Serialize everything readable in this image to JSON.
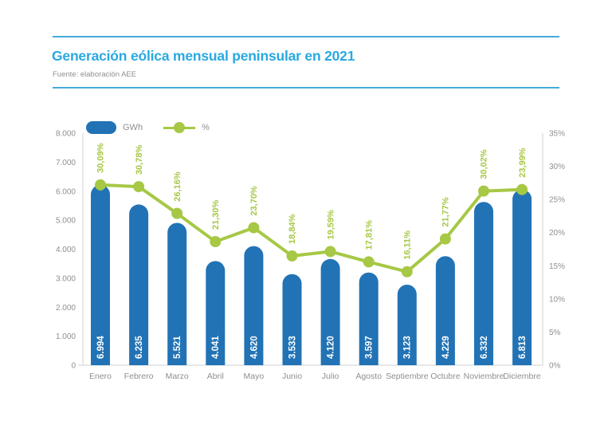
{
  "header": {
    "title": "Generación eólica mensual peninsular en 2021",
    "source": "Fuente: elaboración AEE"
  },
  "legend": {
    "bars_label": "GWh",
    "line_label": "%"
  },
  "colors": {
    "bar": "#2273b5",
    "line": "#a6c845",
    "title": "#29a9e0",
    "rule": "#45aadb",
    "axis_text": "#8f8f8f",
    "axis_line": "#d9d9d9",
    "bar_value_text": "#ffffff"
  },
  "chart_data": {
    "type": "bar",
    "title": "Generación eólica mensual peninsular en 2021",
    "categories": [
      "Enero",
      "Febrero",
      "Marzo",
      "Abril",
      "Mayo",
      "Junio",
      "Julio",
      "Agosto",
      "Septiembre",
      "Octubre",
      "Noviembre",
      "Diciembre"
    ],
    "series": [
      {
        "name": "GWh",
        "type": "bar",
        "values": [
          6994,
          6235,
          5521,
          4041,
          4620,
          3533,
          4120,
          3597,
          3123,
          4229,
          6332,
          6813
        ],
        "labels": [
          "6.994",
          "6.235",
          "5.521",
          "4.041",
          "4.620",
          "3.533",
          "4.120",
          "3.597",
          "3.123",
          "4.229",
          "6.332",
          "6.813"
        ]
      },
      {
        "name": "%",
        "type": "line",
        "values": [
          30.09,
          30.78,
          26.16,
          21.3,
          23.7,
          18.84,
          19.59,
          17.81,
          16.11,
          21.77,
          30.02,
          23.99
        ],
        "labels": [
          "30,09%",
          "30,78%",
          "26,16%",
          "21,30%",
          "23,70%",
          "18,84%",
          "19,59%",
          "17,81%",
          "16,11%",
          "21,77%",
          "30,02%",
          "23,99%"
        ]
      }
    ],
    "left_axis": {
      "label": "GWh",
      "ticks": [
        "8.000",
        "7.000",
        "6.000",
        "5.000",
        "4.000",
        "3.000",
        "2.000",
        "1.000",
        "0"
      ],
      "min": 0,
      "max": 8000
    },
    "right_axis": {
      "label": "%",
      "ticks": [
        "35%",
        "30%",
        "25%",
        "20%",
        "15%",
        "10%",
        "5%",
        "0%"
      ],
      "min": 0,
      "max": 35
    },
    "layout_hints": {
      "grid": "off",
      "legend_position": "top-left",
      "bar_pixel_scale_max": 9000,
      "pct_pixel_scale_max": 40
    }
  }
}
